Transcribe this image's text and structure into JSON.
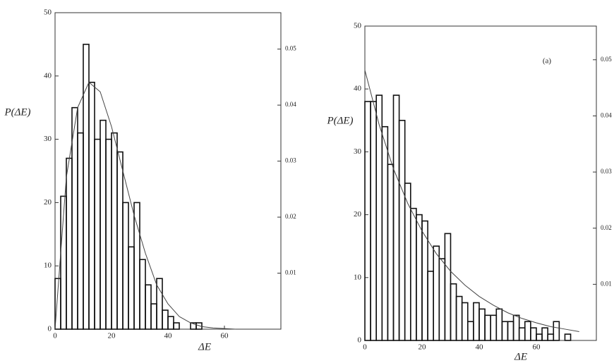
{
  "chart_data": [
    {
      "type": "histogram",
      "ylabel": "P(ΔE)",
      "xlabel": "ΔE",
      "bins": [
        0,
        2,
        4,
        6,
        8,
        10,
        12,
        14,
        16,
        18,
        20,
        22,
        24,
        26,
        28,
        30,
        32,
        34,
        36,
        38,
        40,
        42,
        44,
        46,
        48,
        50,
        52,
        54
      ],
      "values": [
        8,
        21,
        27,
        35,
        31,
        45,
        39,
        30,
        33,
        30,
        31,
        28,
        20,
        13,
        20,
        11,
        7,
        4,
        8,
        3,
        2,
        1,
        0,
        0,
        1,
        1,
        0
      ],
      "curve": {
        "x": [
          0,
          4,
          8,
          12,
          16,
          20,
          24,
          28,
          32,
          36,
          40,
          44,
          48,
          52,
          56,
          60,
          64
        ],
        "y": [
          0,
          24,
          35,
          39,
          37.5,
          32,
          25,
          18,
          12,
          7,
          4,
          2,
          1,
          0.4,
          0.2,
          0.1,
          0
        ]
      },
      "xlim": [
        0,
        80
      ],
      "xticks": [
        0,
        20,
        40,
        60
      ],
      "ylim": [
        0,
        50
      ],
      "yticks": [
        0,
        10,
        20,
        30,
        40,
        50
      ],
      "y2lim": [
        0,
        0.0565
      ],
      "y2ticks": [
        0.01,
        0.02,
        0.03,
        0.04,
        0.05
      ]
    },
    {
      "type": "histogram",
      "ylabel": "P(ΔE)",
      "xlabel": "ΔE",
      "annotation": "(a)",
      "bins": [
        0,
        2,
        4,
        6,
        8,
        10,
        12,
        14,
        16,
        18,
        20,
        22,
        24,
        26,
        28,
        30,
        32,
        34,
        36,
        38,
        40,
        42,
        44,
        46,
        48,
        50,
        52,
        54,
        56,
        58,
        60,
        62,
        64,
        66,
        68,
        70,
        72,
        74
      ],
      "values": [
        38,
        38,
        39,
        34,
        28,
        39,
        35,
        25,
        21,
        20,
        19,
        11,
        15,
        13,
        17,
        9,
        7,
        6,
        3,
        6,
        5,
        4,
        4,
        5,
        3,
        3,
        4,
        2,
        3,
        2,
        1,
        2,
        1,
        3,
        0,
        1,
        0
      ],
      "curve": {
        "x": [
          0,
          5,
          10,
          15,
          20,
          25,
          30,
          35,
          40,
          45,
          50,
          55,
          60,
          65,
          70,
          75
        ],
        "y": [
          43,
          34.3,
          27.3,
          21.8,
          17.4,
          13.8,
          11.0,
          8.8,
          7.0,
          5.6,
          4.4,
          3.5,
          2.8,
          2.2,
          1.8,
          1.4
        ]
      },
      "xlim": [
        0,
        81
      ],
      "xticks": [
        0,
        20,
        40,
        60
      ],
      "ylim": [
        0,
        50
      ],
      "yticks": [
        0,
        10,
        20,
        30,
        40,
        50
      ],
      "y2lim": [
        0,
        0.056
      ],
      "y2ticks": [
        0.01,
        0.02,
        0.03,
        0.04,
        0.05
      ]
    }
  ]
}
